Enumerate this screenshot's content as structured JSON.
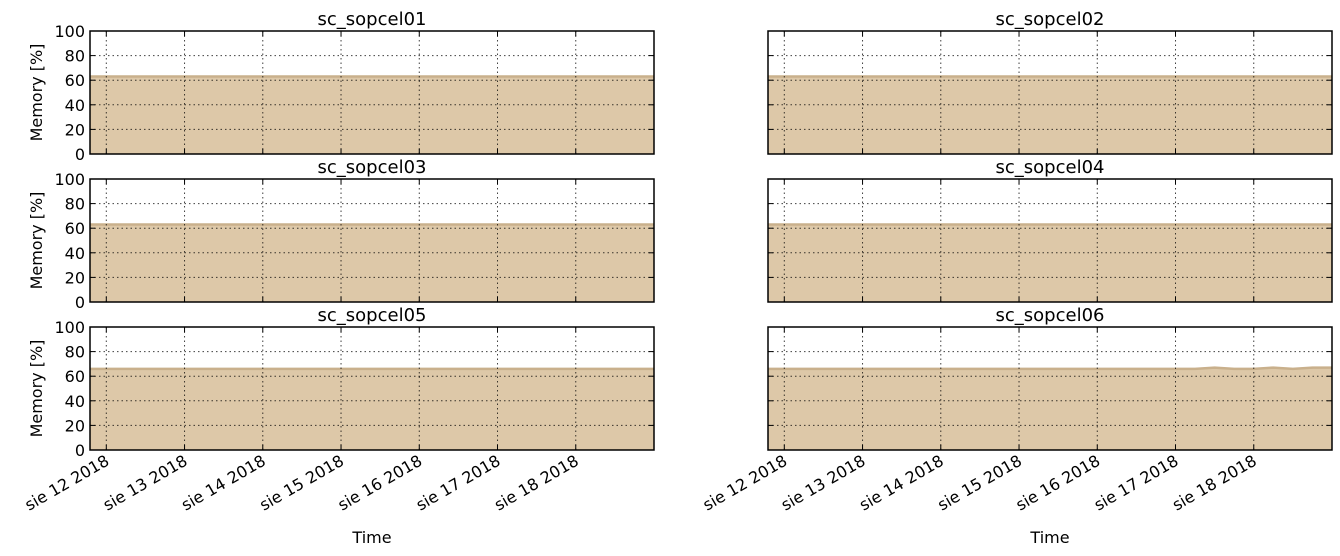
{
  "chart_data": [
    {
      "type": "area",
      "title": "sc_sopcel01",
      "ylabel": "Memory [%]",
      "xlabel": "",
      "ylim": [
        0,
        100
      ],
      "yticks": [
        0,
        20,
        40,
        60,
        80,
        100
      ],
      "xlim": [
        "2018-08-11T19:00",
        "2018-08-19T00:00"
      ],
      "xticks": [
        "2018-08-12",
        "2018-08-13",
        "2018-08-14",
        "2018-08-15",
        "2018-08-16",
        "2018-08-17",
        "2018-08-18"
      ],
      "xticklabels": [],
      "grid": true,
      "color": "#ddc8a8",
      "edge_color": "#c9b08c",
      "x": [
        "2018-08-11T19:00",
        "2018-08-19T00:00"
      ],
      "y": [
        63,
        63
      ]
    },
    {
      "type": "area",
      "title": "sc_sopcel02",
      "ylabel": "",
      "xlabel": "",
      "ylim": [
        0,
        100
      ],
      "yticks": [
        0,
        20,
        40,
        60,
        80,
        100
      ],
      "xlim": [
        "2018-08-11T19:00",
        "2018-08-19T00:00"
      ],
      "xticks": [
        "2018-08-12",
        "2018-08-13",
        "2018-08-14",
        "2018-08-15",
        "2018-08-16",
        "2018-08-17",
        "2018-08-18"
      ],
      "xticklabels": [],
      "grid": true,
      "color": "#ddc8a8",
      "edge_color": "#c9b08c",
      "x": [
        "2018-08-11T19:00",
        "2018-08-19T00:00"
      ],
      "y": [
        63,
        63
      ]
    },
    {
      "type": "area",
      "title": "sc_sopcel03",
      "ylabel": "Memory [%]",
      "xlabel": "",
      "ylim": [
        0,
        100
      ],
      "yticks": [
        0,
        20,
        40,
        60,
        80,
        100
      ],
      "xlim": [
        "2018-08-11T19:00",
        "2018-08-19T00:00"
      ],
      "xticks": [
        "2018-08-12",
        "2018-08-13",
        "2018-08-14",
        "2018-08-15",
        "2018-08-16",
        "2018-08-17",
        "2018-08-18"
      ],
      "xticklabels": [],
      "grid": true,
      "color": "#ddc8a8",
      "edge_color": "#c9b08c",
      "x": [
        "2018-08-11T19:00",
        "2018-08-19T00:00"
      ],
      "y": [
        63,
        63
      ]
    },
    {
      "type": "area",
      "title": "sc_sopcel04",
      "ylabel": "",
      "xlabel": "",
      "ylim": [
        0,
        100
      ],
      "yticks": [
        0,
        20,
        40,
        60,
        80,
        100
      ],
      "xlim": [
        "2018-08-11T19:00",
        "2018-08-19T00:00"
      ],
      "xticks": [
        "2018-08-12",
        "2018-08-13",
        "2018-08-14",
        "2018-08-15",
        "2018-08-16",
        "2018-08-17",
        "2018-08-18"
      ],
      "xticklabels": [],
      "grid": true,
      "color": "#ddc8a8",
      "edge_color": "#c9b08c",
      "x": [
        "2018-08-11T19:00",
        "2018-08-19T00:00"
      ],
      "y": [
        63,
        63
      ]
    },
    {
      "type": "area",
      "title": "sc_sopcel05",
      "ylabel": "Memory [%]",
      "xlabel": "Time",
      "ylim": [
        0,
        100
      ],
      "yticks": [
        0,
        20,
        40,
        60,
        80,
        100
      ],
      "xlim": [
        "2018-08-11T19:00",
        "2018-08-19T00:00"
      ],
      "xticks": [
        "2018-08-12",
        "2018-08-13",
        "2018-08-14",
        "2018-08-15",
        "2018-08-16",
        "2018-08-17",
        "2018-08-18"
      ],
      "xticklabels": [
        "sie 12 2018",
        "sie 13 2018",
        "sie 14 2018",
        "sie 15 2018",
        "sie 16 2018",
        "sie 17 2018",
        "sie 18 2018"
      ],
      "grid": true,
      "color": "#ddc8a8",
      "edge_color": "#c9b08c",
      "x": [
        "2018-08-11T19:00",
        "2018-08-19T00:00"
      ],
      "y": [
        66,
        66
      ]
    },
    {
      "type": "area",
      "title": "sc_sopcel06",
      "ylabel": "",
      "xlabel": "Time",
      "ylim": [
        0,
        100
      ],
      "yticks": [
        0,
        20,
        40,
        60,
        80,
        100
      ],
      "xlim": [
        "2018-08-11T19:00",
        "2018-08-19T00:00"
      ],
      "xticks": [
        "2018-08-12",
        "2018-08-13",
        "2018-08-14",
        "2018-08-15",
        "2018-08-16",
        "2018-08-17",
        "2018-08-18"
      ],
      "xticklabels": [
        "sie 12 2018",
        "sie 13 2018",
        "sie 14 2018",
        "sie 15 2018",
        "sie 16 2018",
        "sie 17 2018",
        "sie 18 2018"
      ],
      "grid": true,
      "color": "#ddc8a8",
      "edge_color": "#c9b08c",
      "x": [
        "2018-08-11T19:00",
        "2018-08-12T12:00",
        "2018-08-13T12:00",
        "2018-08-14T12:00",
        "2018-08-15T12:00",
        "2018-08-16T12:00",
        "2018-08-17T06:00",
        "2018-08-17T12:00",
        "2018-08-17T18:00",
        "2018-08-18T00:00",
        "2018-08-18T06:00",
        "2018-08-18T12:00",
        "2018-08-18T18:00",
        "2018-08-19T00:00"
      ],
      "y": [
        66,
        66,
        66,
        66,
        66,
        66,
        66,
        67,
        66,
        66,
        67,
        66,
        67,
        67
      ]
    }
  ]
}
